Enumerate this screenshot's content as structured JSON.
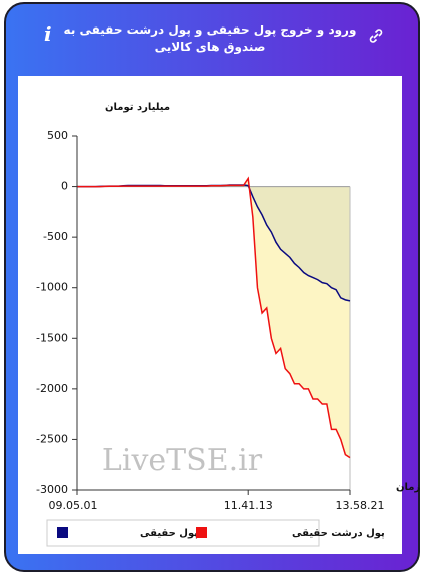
{
  "chart_data": {
    "type": "line",
    "title": "ورود و خروج پول حقیقی و پول درشت حقیقی به صندوق های کالایی",
    "ylabel": "میلیارد تومان",
    "xlabel": "زمان",
    "watermark": "LiveTSE.ir",
    "categories": [
      "09.05.01",
      null,
      null,
      null,
      null,
      null,
      null,
      null,
      null,
      null,
      null,
      null,
      null,
      null,
      null,
      null,
      null,
      null,
      null,
      null,
      null,
      null,
      null,
      null,
      null,
      null,
      null,
      null,
      null,
      null,
      null,
      null,
      null,
      null,
      null,
      null,
      null,
      "11.41.13",
      null,
      null,
      null,
      null,
      null,
      null,
      null,
      null,
      null,
      null,
      null,
      null,
      null,
      null,
      null,
      null,
      null,
      null,
      null,
      null,
      null,
      "13.58.21"
    ],
    "series": [
      {
        "name": "پول حقیقی",
        "color": "#0a0a80",
        "values": [
          0,
          0,
          0,
          0,
          0,
          2,
          3,
          5,
          5,
          5,
          8,
          10,
          10,
          10,
          10,
          10,
          10,
          10,
          10,
          8,
          8,
          8,
          8,
          8,
          8,
          8,
          8,
          8,
          8,
          10,
          10,
          10,
          12,
          15,
          15,
          15,
          15,
          10,
          -100,
          -200,
          -280,
          -380,
          -450,
          -550,
          -620,
          -660,
          -700,
          -760,
          -800,
          -850,
          -880,
          -900,
          -920,
          -950,
          -960,
          -1000,
          -1020,
          -1100,
          -1120,
          -1130
        ]
      },
      {
        "name": "پول درشت حقیقی",
        "color": "#ee1111",
        "values": [
          0,
          0,
          0,
          0,
          0,
          0,
          2,
          3,
          3,
          3,
          5,
          5,
          5,
          5,
          5,
          5,
          5,
          5,
          5,
          5,
          5,
          5,
          5,
          5,
          5,
          5,
          5,
          5,
          5,
          8,
          8,
          8,
          10,
          12,
          12,
          12,
          12,
          80,
          -300,
          -1000,
          -1250,
          -1200,
          -1500,
          -1650,
          -1600,
          -1800,
          -1850,
          -1950,
          -1950,
          -2000,
          -2000,
          -2100,
          -2100,
          -2150,
          -2150,
          -2400,
          -2400,
          -2500,
          -2650,
          -2680
        ]
      }
    ],
    "ylim": [
      -3000,
      500
    ],
    "yticks": [
      500,
      0,
      -500,
      -1000,
      -1500,
      -2000,
      -2500,
      -3000
    ],
    "grid": false
  }
}
